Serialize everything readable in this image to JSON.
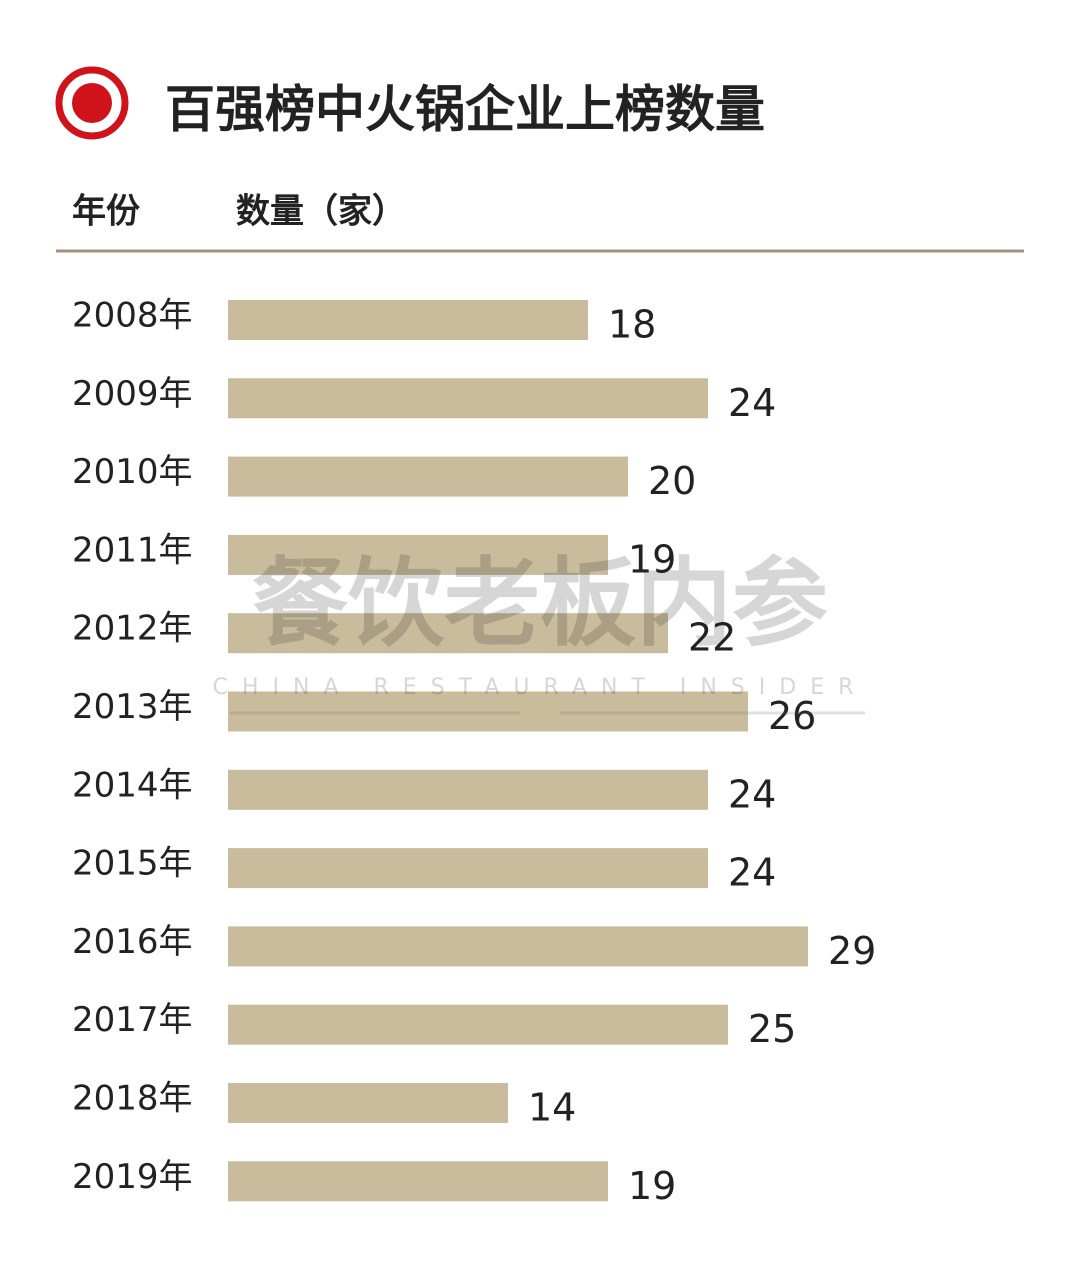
{
  "chart_data": {
    "type": "bar",
    "orientation": "horizontal",
    "title": "百强榜中火锅企业上榜数量",
    "category_header": "年份",
    "value_header": "数量（家）",
    "categories": [
      "2008年",
      "2009年",
      "2010年",
      "2011年",
      "2012年",
      "2013年",
      "2014年",
      "2015年",
      "2016年",
      "2017年",
      "2018年",
      "2019年"
    ],
    "values": [
      18,
      24,
      20,
      19,
      22,
      26,
      24,
      24,
      29,
      25,
      14,
      19
    ],
    "color": "#c9bc9c",
    "watermark": {
      "text": "餐饮老板内参",
      "subtext": "CHINA RESTAURANT INSIDER"
    }
  }
}
